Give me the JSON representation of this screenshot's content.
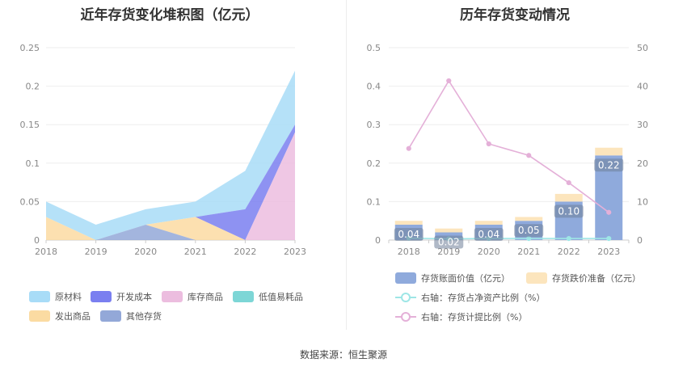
{
  "left_chart": {
    "chart_data": {
      "type": "area",
      "stacked": true,
      "title": "近年存货变化堆积图（亿元）",
      "categories": [
        "2018",
        "2019",
        "2020",
        "2021",
        "2022",
        "2023"
      ],
      "ylim": [
        0,
        0.25
      ],
      "yticks": [
        "0",
        "0.05",
        "0.1",
        "0.15",
        "0.2",
        "0.25"
      ],
      "grid": true,
      "legend_position": "bottom",
      "series": [
        {
          "name": "原材料",
          "color": "#a8dcf7",
          "values": [
            0.02,
            0.02,
            0.02,
            0.02,
            0.05,
            0.07
          ]
        },
        {
          "name": "开发成本",
          "color": "#7a7ff0",
          "values": [
            0,
            0,
            0,
            0,
            0.04,
            0.01
          ]
        },
        {
          "name": "库存商品",
          "color": "#ecbddf",
          "values": [
            0,
            0,
            0,
            0,
            0,
            0.14
          ]
        },
        {
          "name": "低值易耗品",
          "color": "#7dd6d6",
          "values": [
            0,
            0,
            0,
            0,
            0,
            0
          ]
        },
        {
          "name": "发出商品",
          "color": "#fbdba2",
          "values": [
            0.03,
            0,
            0,
            0.03,
            0,
            0
          ]
        },
        {
          "name": "其他存货",
          "color": "#93a8d8",
          "values": [
            0,
            0,
            0.02,
            0,
            0,
            0
          ]
        }
      ]
    }
  },
  "right_chart": {
    "chart_data": {
      "type": "bar",
      "title": "历年存货变动情况",
      "categories": [
        "2018",
        "2019",
        "2020",
        "2021",
        "2022",
        "2023"
      ],
      "ylim": [
        0,
        0.5
      ],
      "yticks": [
        "0",
        "0.1",
        "0.2",
        "0.3",
        "0.4",
        "0.5"
      ],
      "y2lim": [
        0,
        50
      ],
      "y2ticks": [
        "0",
        "10",
        "20",
        "30",
        "40",
        "50"
      ],
      "grid": true,
      "legend_position": "bottom",
      "series": [
        {
          "name": "存货账面价值（亿元）",
          "type": "bar",
          "stack": "inv",
          "color": "#8faadc",
          "values": [
            0.04,
            0.02,
            0.04,
            0.05,
            0.1,
            0.22
          ],
          "labels": [
            "0.04",
            "0.02",
            "0.04",
            "0.05",
            "0.10",
            "0.22"
          ]
        },
        {
          "name": "存货跌价准备（亿元）",
          "type": "bar",
          "stack": "inv",
          "color": "#fce5bd",
          "values": [
            0.01,
            0.01,
            0.01,
            0.01,
            0.02,
            0.02
          ]
        },
        {
          "name": "右轴：存货占净资产比例（%）",
          "type": "line",
          "axis": "right",
          "color": "#9ee6e6",
          "values": [
            0.5,
            0.3,
            0.4,
            0.4,
            0.4,
            0.4
          ]
        },
        {
          "name": "右轴：存货计提比例（%）",
          "type": "line",
          "axis": "right",
          "color": "#e4b0d8",
          "values": [
            23.8,
            41.4,
            25.0,
            22.0,
            14.9,
            7.2
          ]
        }
      ]
    }
  },
  "footer": {
    "source": "数据来源：恒生聚源"
  }
}
